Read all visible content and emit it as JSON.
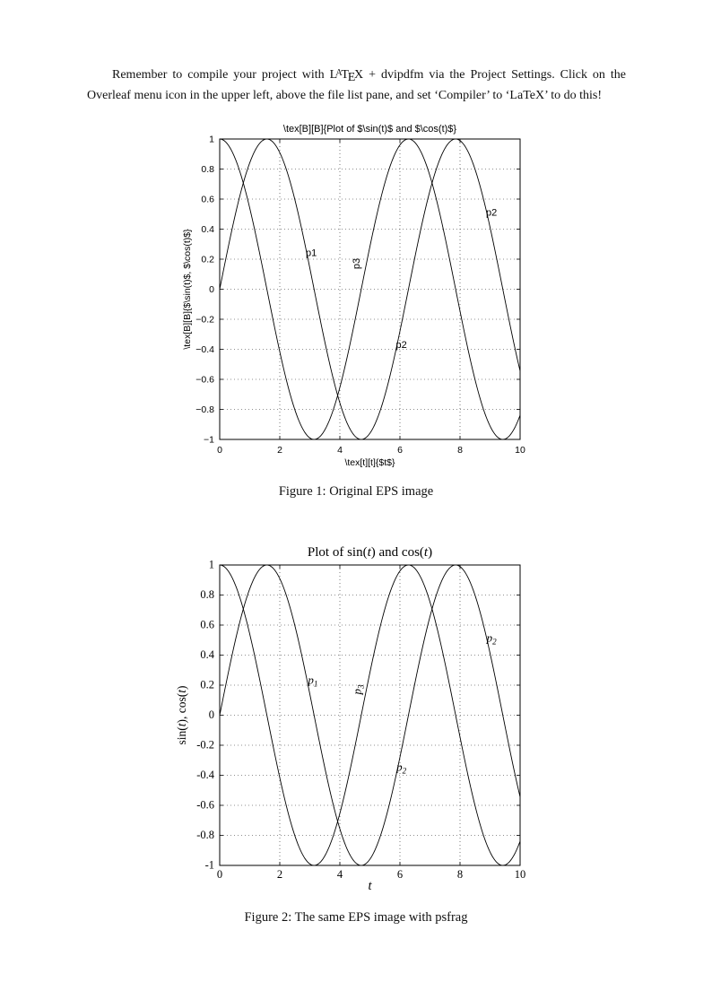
{
  "paragraph": {
    "before_logo": "Remember to compile your project with ",
    "latex_logo": {
      "L": "L",
      "A": "A",
      "T": "T",
      "E": "E",
      "X": "X"
    },
    "after_logo": " + dvipdfm via the Project Settings. Click on the Overleaf menu icon in the upper left, above the file list pane, and set ‘Compiler’ to ‘LaTeX’ to do this!"
  },
  "captions": {
    "fig1": "Figure 1: Original EPS image",
    "fig2": "Figure 2: The same EPS image with psfrag"
  },
  "chart_data": [
    {
      "id": "figure-1-original-eps",
      "type": "line",
      "title_segments": [
        {
          "text": "\\tex[B][B]{Plot of $\\sin(t)$ and $\\cos(t)$}"
        }
      ],
      "xlabel_segments": [
        {
          "text": "\\tex[t][t]{$t$}"
        }
      ],
      "ylabel_segments": [
        {
          "text": "\\tex[B][B]{$\\sin(t)$, $\\cos(t)$}"
        }
      ],
      "x_range": [
        0,
        10
      ],
      "y_range": [
        -1,
        1
      ],
      "xticks": [
        0,
        2,
        4,
        6,
        8,
        10
      ],
      "xtick_labels": [
        "0",
        "2",
        "4",
        "6",
        "8",
        "10"
      ],
      "yticks": [
        1,
        0.8,
        0.6,
        0.4,
        0.2,
        0,
        -0.2,
        -0.4,
        -0.6,
        -0.8,
        -1
      ],
      "ytick_labels": [
        "1",
        "0.8",
        "0.6",
        "0.4",
        "0.2",
        "0",
        "−0.2",
        "−0.4",
        "−0.6",
        "−0.8",
        "−1"
      ],
      "grid": "dotted",
      "legend": "none",
      "series": [
        {
          "name": "sin(t)",
          "fn": "sin"
        },
        {
          "name": "cos(t)",
          "fn": "cos"
        }
      ],
      "annotations": [
        {
          "x": 3.05,
          "y": 0.22,
          "rotate": 0,
          "segments": [
            {
              "text": "p1"
            }
          ]
        },
        {
          "x": 4.65,
          "y": 0.17,
          "rotate": -90,
          "segments": [
            {
              "text": "p3"
            }
          ]
        },
        {
          "x": 9.05,
          "y": 0.49,
          "rotate": 0,
          "segments": [
            {
              "text": "p2"
            }
          ]
        },
        {
          "x": 6.05,
          "y": -0.39,
          "rotate": 0,
          "segments": [
            {
              "text": "p2"
            }
          ]
        }
      ]
    },
    {
      "id": "figure-2-psfrag",
      "type": "line",
      "title_segments": [
        {
          "text": "Plot of sin("
        },
        {
          "text": "t",
          "italic": true
        },
        {
          "text": ") and cos("
        },
        {
          "text": "t",
          "italic": true
        },
        {
          "text": ")"
        }
      ],
      "xlabel_segments": [
        {
          "text": "t",
          "italic": true
        }
      ],
      "ylabel_segments": [
        {
          "text": "sin("
        },
        {
          "text": "t",
          "italic": true
        },
        {
          "text": "), cos("
        },
        {
          "text": "t",
          "italic": true
        },
        {
          "text": ")"
        }
      ],
      "x_range": [
        0,
        10
      ],
      "y_range": [
        -1,
        1
      ],
      "xticks": [
        0,
        2,
        4,
        6,
        8,
        10
      ],
      "xtick_labels": [
        "0",
        "2",
        "4",
        "6",
        "8",
        "10"
      ],
      "yticks": [
        1,
        0.8,
        0.6,
        0.4,
        0.2,
        0,
        -0.2,
        -0.4,
        -0.6,
        -0.8,
        -1
      ],
      "ytick_labels": [
        "1",
        "0.8",
        "0.6",
        "0.4",
        "0.2",
        "0",
        "-0.2",
        "-0.4",
        "-0.6",
        "-0.8",
        "-1"
      ],
      "grid": "dotted",
      "legend": "none",
      "series": [
        {
          "name": "sin(t)",
          "fn": "sin"
        },
        {
          "name": "cos(t)",
          "fn": "cos"
        }
      ],
      "annotations": [
        {
          "x": 3.1,
          "y": 0.21,
          "rotate": 0,
          "segments": [
            {
              "text": "p",
              "italic": true
            },
            {
              "text": "1",
              "italic": true,
              "sub": true
            }
          ]
        },
        {
          "x": 4.7,
          "y": 0.17,
          "rotate": -90,
          "segments": [
            {
              "text": "p",
              "italic": true
            },
            {
              "text": "3",
              "italic": true,
              "sub": true
            }
          ]
        },
        {
          "x": 9.05,
          "y": 0.49,
          "rotate": 0,
          "segments": [
            {
              "text": "p",
              "italic": true
            },
            {
              "text": "2",
              "italic": true,
              "sub": true
            }
          ]
        },
        {
          "x": 6.05,
          "y": -0.37,
          "rotate": 0,
          "segments": [
            {
              "text": "p",
              "italic": true
            },
            {
              "text": "2",
              "italic": true,
              "sub": true
            }
          ]
        }
      ]
    }
  ]
}
